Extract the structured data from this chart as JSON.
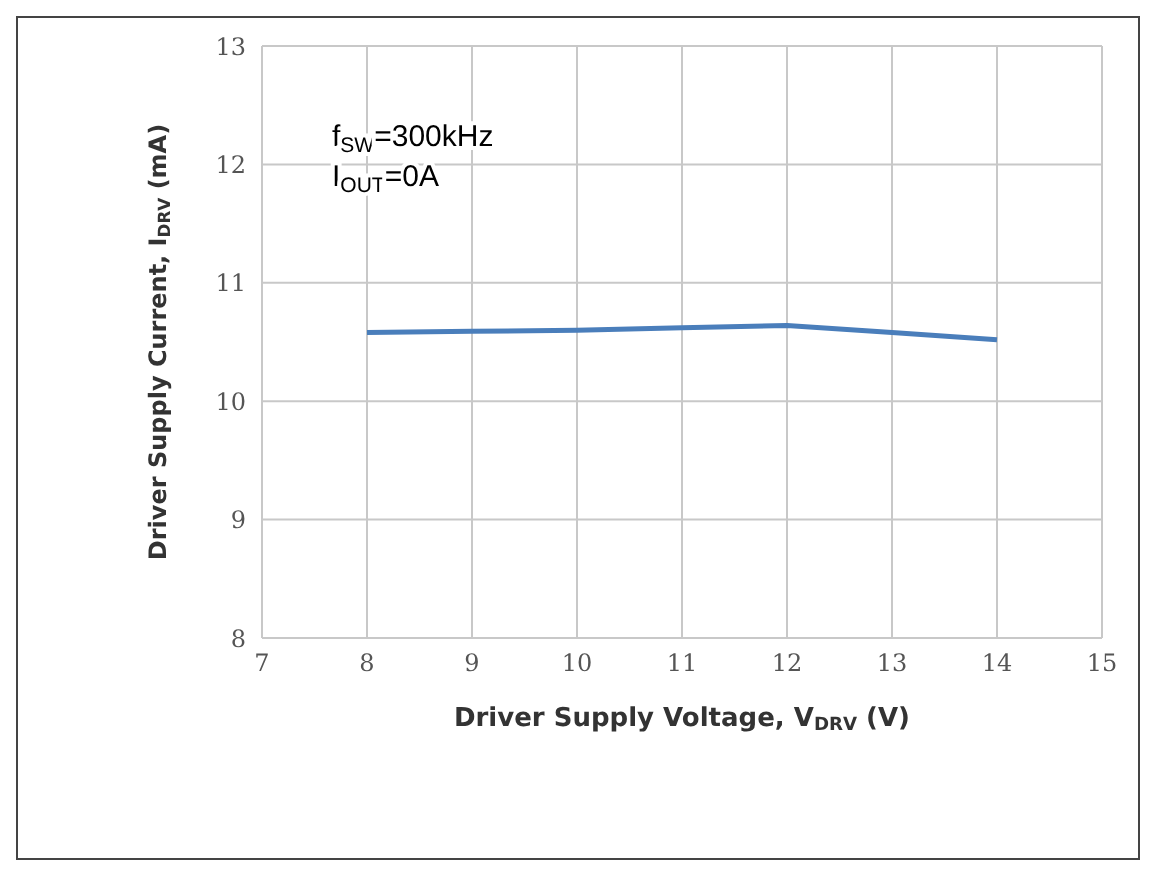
{
  "chart_data": {
    "type": "line",
    "xlabel": "Driver Supply Voltage, V$_{DRV}$ (V)",
    "ylabel": "Driver Supply Current, I$_{DRV}$ (mA)",
    "annotations": [
      "f$_{SW}$=300kHz",
      "I$_{OUT}$=0A"
    ],
    "x": [
      8,
      9,
      10,
      11,
      12,
      13,
      14
    ],
    "series": [
      {
        "color": "#4a7ebb",
        "values": [
          10.58,
          10.59,
          10.6,
          10.62,
          10.64,
          10.58,
          10.52
        ]
      }
    ],
    "xlim": [
      7,
      15
    ],
    "xticks": [
      7,
      8,
      9,
      10,
      11,
      12,
      13,
      14,
      15
    ],
    "ylim": [
      8,
      13
    ],
    "yticks": [
      8,
      9,
      10,
      11,
      12,
      13
    ],
    "grid": true,
    "marker": "none",
    "line_style": "solid",
    "legend": false
  }
}
